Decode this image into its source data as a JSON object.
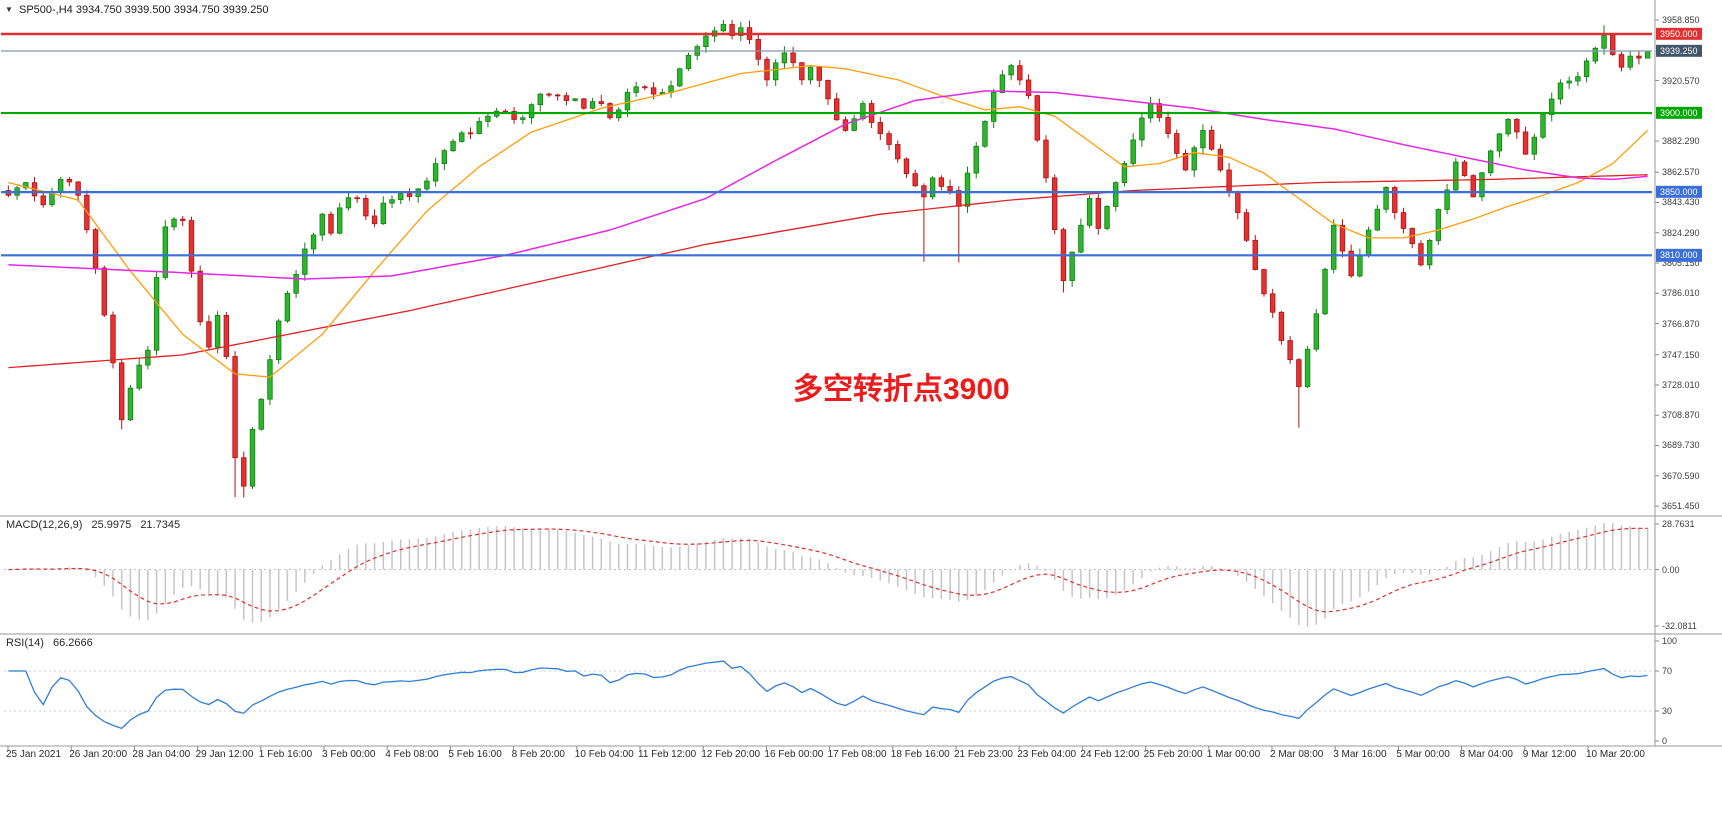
{
  "chart_data": {
    "type": "candlestick+indicators",
    "header": {
      "symbol_timeframe": "SP500-,H4",
      "ohlc": "3934.750 3939.500 3934.750 3939.250"
    },
    "icons": {
      "symbol_marker": "▼"
    },
    "annotation": {
      "text": "多空转折点3900",
      "color": "#ed1c1c"
    },
    "price_axis": {
      "min": 3651.45,
      "max": 3958.85,
      "ticks": [
        3958.85,
        3920.57,
        3882.29,
        3862.57,
        3843.43,
        3824.29,
        3805.15,
        3786.01,
        3766.87,
        3747.15,
        3728.01,
        3708.87,
        3689.73,
        3670.59,
        3651.45
      ]
    },
    "levels": [
      {
        "price": 3950.0,
        "label": "3950.000",
        "line": "#e03030",
        "width": 2.4,
        "badge_bg": "#e03030"
      },
      {
        "price": 3939.25,
        "label": "3939.250",
        "line": "#8298ab",
        "width": 1.2,
        "badge_bg": "#42566b"
      },
      {
        "price": 3900.0,
        "label": "3900.000",
        "line": "#00a800",
        "width": 2.2,
        "badge_bg": "#00a800"
      },
      {
        "price": 3850.0,
        "label": "3850.000",
        "line": "#3a6fd8",
        "width": 2.2,
        "badge_bg": "#3a6fd8"
      },
      {
        "price": 3810.0,
        "label": "3810.000",
        "line": "#3a6fd8",
        "width": 2.2,
        "badge_bg": "#3a6fd8"
      }
    ],
    "candles": {
      "count": 189,
      "close_anchors": [
        [
          0,
          3848
        ],
        [
          2,
          3856
        ],
        [
          4,
          3842
        ],
        [
          6,
          3858
        ],
        [
          8,
          3848
        ],
        [
          10,
          3802
        ],
        [
          12,
          3742
        ],
        [
          13,
          3706
        ],
        [
          14,
          3726
        ],
        [
          16,
          3750
        ],
        [
          17,
          3796
        ],
        [
          18,
          3828
        ],
        [
          20,
          3832
        ],
        [
          21,
          3800
        ],
        [
          22,
          3768
        ],
        [
          23,
          3752
        ],
        [
          24,
          3772
        ],
        [
          25,
          3746
        ],
        [
          26,
          3682
        ],
        [
          27,
          3664
        ],
        [
          28,
          3700
        ],
        [
          30,
          3744
        ],
        [
          32,
          3786
        ],
        [
          34,
          3814
        ],
        [
          36,
          3836
        ],
        [
          37,
          3824
        ],
        [
          38,
          3840
        ],
        [
          40,
          3846
        ],
        [
          42,
          3830
        ],
        [
          43,
          3843
        ],
        [
          45,
          3849
        ],
        [
          47,
          3852
        ],
        [
          49,
          3868
        ],
        [
          51,
          3882
        ],
        [
          53,
          3887
        ],
        [
          55,
          3898
        ],
        [
          57,
          3901
        ],
        [
          59,
          3897
        ],
        [
          61,
          3912
        ],
        [
          63,
          3911
        ],
        [
          65,
          3909
        ],
        [
          66,
          3903
        ],
        [
          68,
          3906
        ],
        [
          69,
          3897
        ],
        [
          71,
          3913
        ],
        [
          73,
          3916
        ],
        [
          75,
          3913
        ],
        [
          77,
          3928
        ],
        [
          79,
          3942
        ],
        [
          81,
          3952
        ],
        [
          82,
          3956
        ],
        [
          83,
          3949
        ],
        [
          84,
          3954
        ],
        [
          86,
          3934
        ],
        [
          87,
          3921
        ],
        [
          89,
          3938
        ],
        [
          91,
          3921
        ],
        [
          92,
          3929
        ],
        [
          94,
          3909
        ],
        [
          96,
          3889
        ],
        [
          98,
          3906
        ],
        [
          100,
          3887
        ],
        [
          102,
          3871
        ],
        [
          104,
          3854
        ],
        [
          105,
          3847
        ],
        [
          106,
          3859
        ],
        [
          108,
          3851
        ],
        [
          109,
          3841
        ],
        [
          111,
          3879
        ],
        [
          113,
          3913
        ],
        [
          115,
          3930
        ],
        [
          117,
          3911
        ],
        [
          119,
          3859
        ],
        [
          121,
          3794
        ],
        [
          123,
          3829
        ],
        [
          124,
          3846
        ],
        [
          125,
          3827
        ],
        [
          127,
          3856
        ],
        [
          129,
          3883
        ],
        [
          131,
          3906
        ],
        [
          133,
          3887
        ],
        [
          135,
          3864
        ],
        [
          137,
          3889
        ],
        [
          139,
          3864
        ],
        [
          141,
          3837
        ],
        [
          143,
          3801
        ],
        [
          145,
          3774
        ],
        [
          147,
          3744
        ],
        [
          148,
          3727
        ],
        [
          150,
          3773
        ],
        [
          152,
          3829
        ],
        [
          154,
          3797
        ],
        [
          156,
          3826
        ],
        [
          158,
          3853
        ],
        [
          160,
          3827
        ],
        [
          162,
          3804
        ],
        [
          164,
          3839
        ],
        [
          166,
          3869
        ],
        [
          168,
          3847
        ],
        [
          170,
          3876
        ],
        [
          172,
          3896
        ],
        [
          174,
          3874
        ],
        [
          176,
          3899
        ],
        [
          178,
          3919
        ],
        [
          180,
          3923
        ],
        [
          182,
          3941
        ],
        [
          183,
          3949
        ],
        [
          184,
          3937
        ],
        [
          185,
          3929
        ],
        [
          186,
          3936
        ],
        [
          187,
          3934.75
        ],
        [
          188,
          3939.25
        ]
      ],
      "wick_specials": [
        {
          "bar": 13,
          "low": 3700
        },
        {
          "bar": 26,
          "low": 3657
        },
        {
          "bar": 27,
          "low": 3656.9
        },
        {
          "bar": 82,
          "high": 3958.85
        },
        {
          "bar": 84,
          "high": 3957.5
        },
        {
          "bar": 105,
          "low": 3806
        },
        {
          "bar": 109,
          "low": 3805.5
        },
        {
          "bar": 121,
          "low": 3786.5
        },
        {
          "bar": 148,
          "low": 3701
        },
        {
          "bar": 183,
          "high": 3955.5
        },
        {
          "bar": 188,
          "high": 3939.5,
          "low": 3934.75
        }
      ]
    },
    "moving_averages": [
      {
        "name": "slow-ma",
        "color": "#e22222",
        "width": 1.3,
        "anchors": [
          [
            0,
            3739
          ],
          [
            20,
            3747
          ],
          [
            46,
            3775
          ],
          [
            80,
            3817
          ],
          [
            100,
            3836
          ],
          [
            115,
            3845
          ],
          [
            129,
            3851
          ],
          [
            150,
            3856
          ],
          [
            170,
            3858
          ],
          [
            188,
            3861
          ]
        ]
      },
      {
        "name": "mid-ma",
        "color": "#ff9d0a",
        "width": 1.3,
        "anchors": [
          [
            0,
            3856
          ],
          [
            8,
            3845
          ],
          [
            14,
            3800
          ],
          [
            20,
            3760
          ],
          [
            26,
            3735
          ],
          [
            30,
            3733
          ],
          [
            36,
            3760
          ],
          [
            42,
            3800
          ],
          [
            48,
            3838
          ],
          [
            54,
            3866
          ],
          [
            60,
            3888
          ],
          [
            68,
            3903
          ],
          [
            76,
            3913
          ],
          [
            84,
            3925
          ],
          [
            92,
            3930
          ],
          [
            96,
            3928
          ],
          [
            102,
            3921
          ],
          [
            108,
            3909
          ],
          [
            112,
            3902
          ],
          [
            116,
            3904
          ],
          [
            120,
            3898
          ],
          [
            124,
            3882
          ],
          [
            128,
            3866
          ],
          [
            132,
            3868
          ],
          [
            136,
            3875
          ],
          [
            140,
            3872
          ],
          [
            144,
            3862
          ],
          [
            148,
            3846
          ],
          [
            152,
            3830
          ],
          [
            156,
            3821
          ],
          [
            160,
            3821
          ],
          [
            164,
            3826
          ],
          [
            168,
            3833
          ],
          [
            172,
            3841
          ],
          [
            176,
            3848
          ],
          [
            180,
            3856
          ],
          [
            184,
            3868
          ],
          [
            188,
            3889
          ]
        ]
      },
      {
        "name": "smooth-ma",
        "color": "#e428e4",
        "width": 1.5,
        "anchors": [
          [
            0,
            3804
          ],
          [
            20,
            3799
          ],
          [
            34,
            3795
          ],
          [
            44,
            3797
          ],
          [
            57,
            3810
          ],
          [
            69,
            3826
          ],
          [
            80,
            3846
          ],
          [
            88,
            3870
          ],
          [
            96,
            3893
          ],
          [
            104,
            3908
          ],
          [
            112,
            3914
          ],
          [
            120,
            3913
          ],
          [
            128,
            3908
          ],
          [
            136,
            3903
          ],
          [
            144,
            3896
          ],
          [
            152,
            3890
          ],
          [
            160,
            3880
          ],
          [
            167,
            3872
          ],
          [
            174,
            3864
          ],
          [
            180,
            3859
          ],
          [
            184,
            3858
          ],
          [
            188,
            3860
          ]
        ]
      }
    ],
    "macd": {
      "label": "MACD(12,26,9)",
      "main_value": "25.9975",
      "signal_value": "21.7345",
      "axis_labels": [
        "28.7631",
        "0.00",
        "-32.0811"
      ]
    },
    "rsi": {
      "label": "RSI(14)",
      "value": "66.2666",
      "axis_labels": [
        "100",
        "70",
        "30",
        "0"
      ],
      "levels": [
        70,
        30
      ]
    },
    "x_labels": [
      "25 Jan 2021",
      "26 Jan 20:00",
      "28 Jan 04:00",
      "29 Jan 12:00",
      "1 Feb 16:00",
      "3 Feb 00:00",
      "4 Feb 08:00",
      "5 Feb 16:00",
      "8 Feb 20:00",
      "10 Feb 04:00",
      "11 Feb 12:00",
      "12 Feb 20:00",
      "16 Feb 00:00",
      "17 Feb 08:00",
      "18 Feb 16:00",
      "21 Feb 23:00",
      "23 Feb 04:00",
      "24 Feb 12:00",
      "25 Feb 20:00",
      "1 Mar 00:00",
      "2 Mar 08:00",
      "3 Mar 16:00",
      "5 Mar 00:00",
      "8 Mar 04:00",
      "9 Mar 12:00",
      "10 Mar 20:00"
    ],
    "colors": {
      "up_stroke": "#128012",
      "up_fill": "#2db52d",
      "down_stroke": "#b01414",
      "down_fill": "#e23232",
      "macd_hist": "#c5c5c5",
      "macd_signal": "#e03030",
      "rsi_line": "#2f7ed8",
      "separator": "#9a9a9a",
      "background": "#ffffff"
    }
  }
}
